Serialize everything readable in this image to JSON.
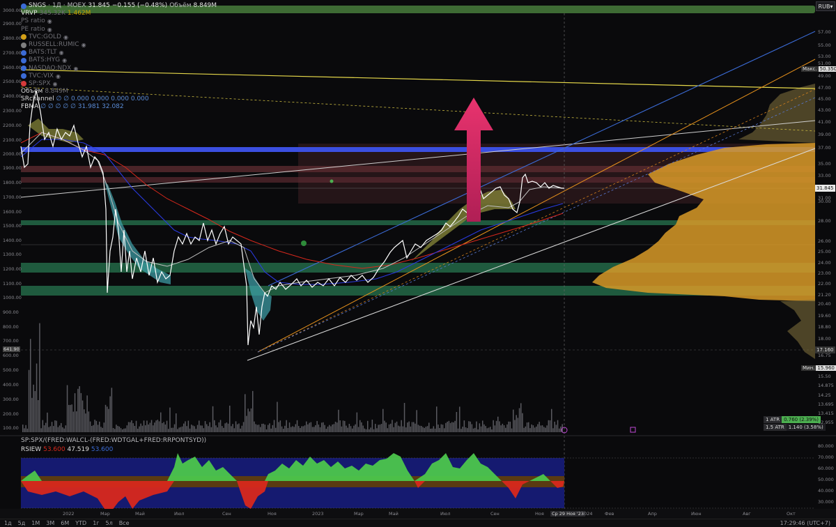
{
  "symbol": {
    "ticker": "SNGS",
    "interval": "1Д",
    "exchange": "MOEX",
    "price": "31.845",
    "change": "−0.155 (−0.48%)",
    "volume_label": "Объём",
    "volume": "8.849M"
  },
  "indicators": [
    {
      "name": "VRVP",
      "values": "345.32K",
      "values2": "1.462M",
      "color": "#c8a000"
    },
    {
      "name": "PS ratio",
      "color": "#6e6e74"
    },
    {
      "name": "PE ratio",
      "color": "#6e6e74"
    },
    {
      "name": "TVC:GOLD",
      "color": "#d4a017"
    },
    {
      "name": "RUSSELL:RUMIC",
      "color": "#808080"
    },
    {
      "name": "BATS:TLT",
      "color": "#3b6bd6"
    },
    {
      "name": "BATS:HYG",
      "color": "#3b6bd6"
    },
    {
      "name": "NASDAQ:NDX",
      "color": "#3b6bd6"
    },
    {
      "name": "TVC:VIX",
      "color": "#3b6bd6"
    },
    {
      "name": "SP:SPX",
      "color": "#d63b3b"
    },
    {
      "name": "Объём",
      "values": "8.849M",
      "color": null
    },
    {
      "name": "SRchannel",
      "values": "∅ ∅ 0.000 0.000 0.000 0.000",
      "color": null
    },
    {
      "name": "FBMA",
      "values": "∅ ∅ ∅ ∅ ∅ 31.981 32.082",
      "color": null
    }
  ],
  "left_axis": [
    "3000.00",
    "2900.00",
    "2800.00",
    "2700.00",
    "2600.00",
    "2500.00",
    "2400.00",
    "2300.00",
    "2200.00",
    "2100.00",
    "2000.00",
    "1900.00",
    "1800.00",
    "1700.00",
    "1600.00",
    "1500.00",
    "1400.00",
    "1300.00",
    "1200.00",
    "1100.00",
    "1000.00",
    "900.00",
    "800.00",
    "700.00",
    "641.90",
    "600.00",
    "500.00",
    "400.00",
    "300.00",
    "200.00",
    "100.00"
  ],
  "right_axis": [
    "57.00",
    "55.00",
    "53.00",
    "51.00",
    "49.00",
    "47.00",
    "45.00",
    "43.00",
    "41.00",
    "39.00",
    "37.00",
    "35.00",
    "33.00",
    "31.00",
    "30.00",
    "28.00",
    "26.00",
    "25.00",
    "24.00",
    "23.00",
    "22.00",
    "21.20",
    "20.40",
    "19.60",
    "18.80",
    "18.00",
    "17.20",
    "16.75",
    "15.50",
    "14.875",
    "14.25",
    "13.695",
    "13.415",
    "12.955"
  ],
  "right_badges": {
    "max_label": "Макс.",
    "max_value": "50.350",
    "price": "31.845",
    "low1": "17.160",
    "min_label": "Мин.",
    "min_value": "15.960"
  },
  "currency": "RUB",
  "time_axis": [
    "2022",
    "Мар",
    "Май",
    "Июл",
    "Сен",
    "Ноя",
    "2023",
    "Мар",
    "Май",
    "Июл",
    "Сен",
    "Ноя",
    "Ср 29 Ноя '23",
    "2024",
    "Фев",
    "Апр",
    "Июн",
    "Авг",
    "Окт"
  ],
  "atr": [
    {
      "label": "1 ATR",
      "value": "0.760 (2.39%)",
      "color": "#4caf50"
    },
    {
      "label": "1.5 ATR",
      "value": "1.140 (3.58%)",
      "color": "#2a2a2e"
    }
  ],
  "lower_pane": {
    "title": "SP:SPX/(FRED:WALCL-(FRED:WDTGAL+FRED:RRPONTSYD))",
    "rsi_label": "RSIEW",
    "rsi_values": [
      "53.600",
      "47.519",
      "53.600"
    ],
    "axis": [
      "80.000",
      "70.000",
      "60.000",
      "50.000",
      "40.000",
      "30.000"
    ]
  },
  "bottom_bar": {
    "ranges": [
      "1д",
      "5д",
      "1М",
      "3М",
      "6М",
      "YTD",
      "1г",
      "5л",
      "Все"
    ],
    "time": "17:29:46 (UTC+7)"
  },
  "colors": {
    "price_line": "#ffffff",
    "ema_blue": "#2a3adf",
    "ema_red": "#d8281c",
    "ema_white": "#bfbfbf",
    "zone_green": "#1f5a3e",
    "zone_blue": "#3b4fe0",
    "arrow_pink": "#e8336e",
    "profile_orange": "#d89a28",
    "rsi_green": "#4cc64c",
    "rsi_red": "#d8281c",
    "rsi_band_blue": "#151a70",
    "rsi_band_brown": "#5a3a12"
  }
}
